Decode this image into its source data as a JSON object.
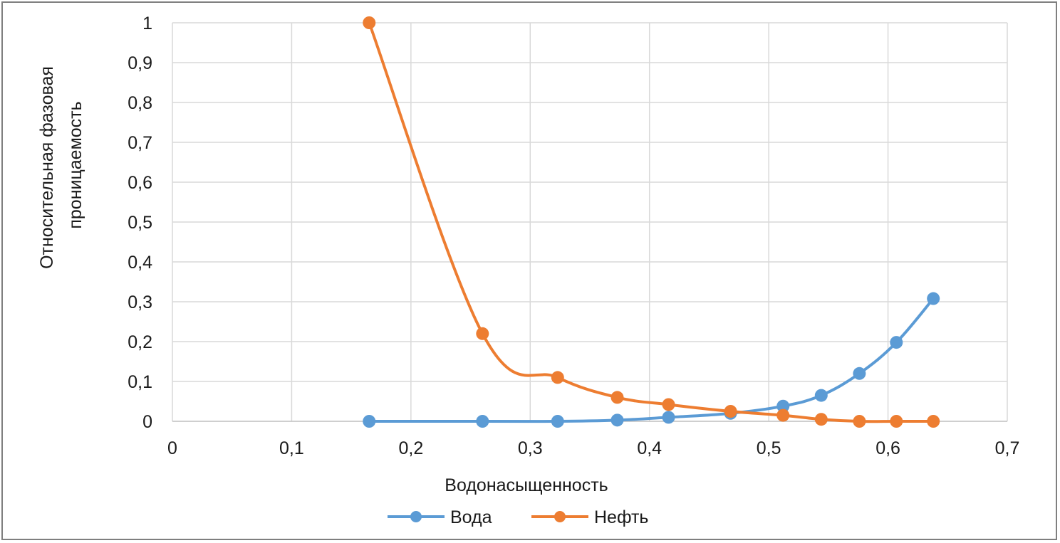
{
  "chart_data": {
    "type": "line",
    "title": "",
    "xlabel": "Водонасыщенность",
    "ylabel": [
      "Относительная фазовая",
      "проницаемость"
    ],
    "xlim": [
      0,
      0.7
    ],
    "ylim": [
      0,
      1
    ],
    "x_ticks": [
      "0",
      "0,1",
      "0,2",
      "0,3",
      "0,4",
      "0,5",
      "0,6",
      "0,7"
    ],
    "y_ticks": [
      "0",
      "0,1",
      "0,2",
      "0,3",
      "0,4",
      "0,5",
      "0,6",
      "0,7",
      "0,8",
      "0,9",
      "1"
    ],
    "grid": true,
    "legend_position": "bottom",
    "smooth": true,
    "series": [
      {
        "name": "Вода",
        "color": "#5b9bd5",
        "points": [
          [
            0.165,
            0.0
          ],
          [
            0.26,
            0.0
          ],
          [
            0.323,
            0.0
          ],
          [
            0.373,
            0.003
          ],
          [
            0.416,
            0.01
          ],
          [
            0.468,
            0.02
          ],
          [
            0.512,
            0.038
          ],
          [
            0.544,
            0.065
          ],
          [
            0.576,
            0.12
          ],
          [
            0.607,
            0.198
          ],
          [
            0.638,
            0.308
          ]
        ]
      },
      {
        "name": "Нефть",
        "color": "#ed7d31",
        "points": [
          [
            0.165,
            1.0
          ],
          [
            0.26,
            0.22
          ],
          [
            0.323,
            0.11
          ],
          [
            0.373,
            0.06
          ],
          [
            0.416,
            0.042
          ],
          [
            0.468,
            0.025
          ],
          [
            0.512,
            0.015
          ],
          [
            0.544,
            0.005
          ],
          [
            0.576,
            0.0
          ],
          [
            0.607,
            0.0
          ],
          [
            0.638,
            0.0
          ]
        ]
      }
    ]
  }
}
